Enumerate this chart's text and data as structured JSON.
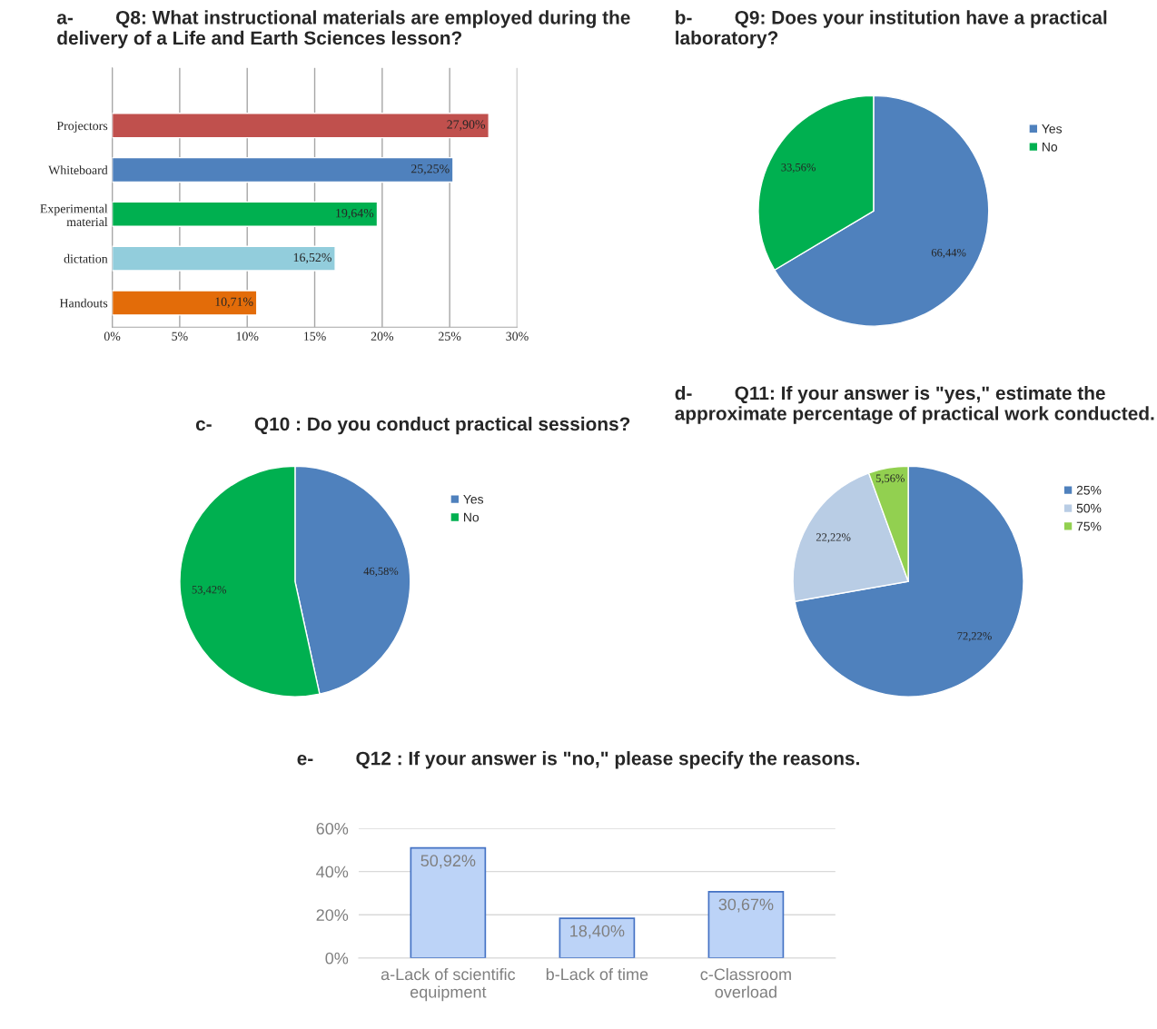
{
  "chart_data": [
    {
      "type": "bar",
      "orientation": "horizontal",
      "title": "a-        Q8: What instructional materials are employed during the delivery of a Life and Earth Sciences lesson?",
      "categories": [
        "Projectors",
        "Whiteboard",
        "Experimental\nmaterial",
        "dictation",
        "Handouts"
      ],
      "values": [
        27.9,
        25.25,
        19.64,
        16.52,
        10.71
      ],
      "colors": [
        "#c0504d",
        "#4f81bd",
        "#00b050",
        "#92cddc",
        "#e36c09"
      ],
      "value_labels": [
        "27,90%",
        "25,25%",
        "19,64%",
        "16,52%",
        "10,71%"
      ],
      "xlim": [
        0,
        30
      ],
      "xticks": [
        {
          "value": 0,
          "label": "0%"
        },
        {
          "value": 5,
          "label": "5%"
        },
        {
          "value": 10,
          "label": "10%"
        },
        {
          "value": 15,
          "label": "15%"
        },
        {
          "value": 20,
          "label": "20%"
        },
        {
          "value": 25,
          "label": "25%"
        },
        {
          "value": 30,
          "label": "30%"
        }
      ],
      "grid": "x"
    },
    {
      "type": "pie",
      "title": "b-        Q9: Does your institution have a practical laboratory?",
      "categories": [
        "Yes",
        "No"
      ],
      "values": [
        66.44,
        33.56
      ],
      "colors": [
        "#4f81bd",
        "#00b050"
      ],
      "value_labels": [
        "66,44%",
        "33,56%"
      ],
      "legend": "right"
    },
    {
      "type": "pie",
      "title": "c-        Q10 : Do you conduct practical sessions?",
      "categories": [
        "Yes",
        "No"
      ],
      "values": [
        46.58,
        53.42
      ],
      "colors": [
        "#4f81bd",
        "#00b050"
      ],
      "value_labels": [
        "46,58%",
        "53,42%"
      ],
      "legend": "right"
    },
    {
      "type": "pie",
      "title": "d-        Q11: If your answer is \"yes,\" estimate the approximate percentage of practical work conducted.",
      "categories": [
        "25%",
        "50%",
        "75%"
      ],
      "values": [
        72.22,
        22.22,
        5.56
      ],
      "colors": [
        "#4f81bd",
        "#b9cde5",
        "#92d050"
      ],
      "value_labels": [
        "72,22%",
        "22,22%",
        "5,56%"
      ],
      "legend": "right"
    },
    {
      "type": "bar",
      "title": "e-        Q12 : If your answer is \"no,\" please specify the reasons.",
      "categories": [
        "a-Lack of scientific\nequipment",
        "b-Lack of time",
        "c-Classroom\noverload"
      ],
      "values": [
        50.92,
        18.4,
        30.67
      ],
      "color": "#bcd3f7",
      "value_labels": [
        "50,92%",
        "18,40%",
        "30,67%"
      ],
      "ylim": [
        0,
        60
      ],
      "yticks": [
        {
          "value": 0,
          "label": "0%"
        },
        {
          "value": 20,
          "label": "20%"
        },
        {
          "value": 40,
          "label": "40%"
        },
        {
          "value": 60,
          "label": "60%"
        }
      ],
      "grid": "y"
    }
  ]
}
